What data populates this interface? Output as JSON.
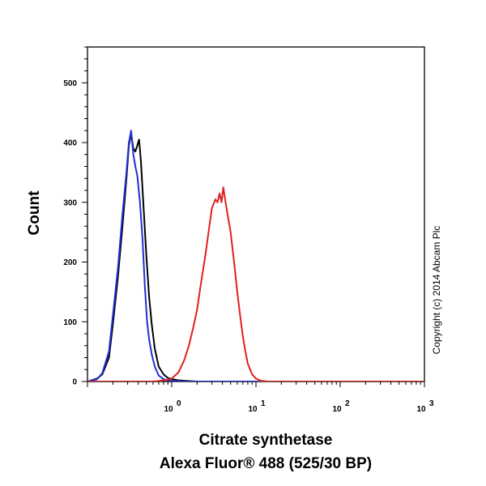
{
  "chart_data": {
    "type": "line",
    "title": "",
    "xlabel": [
      "Citrate synthetase",
      "Alexa Fluor® 488 (525/30 BP)"
    ],
    "ylabel": "Count",
    "x_scale": "log",
    "xlim": [
      0.1,
      1000
    ],
    "ylim": [
      0,
      560
    ],
    "x_ticks": [
      {
        "value": 1,
        "base": "10",
        "exp": "0"
      },
      {
        "value": 10,
        "base": "10",
        "exp": "1"
      },
      {
        "value": 100,
        "base": "10",
        "exp": "2"
      },
      {
        "value": 1000,
        "base": "10",
        "exp": "3"
      }
    ],
    "y_ticks": [
      0,
      100,
      200,
      300,
      400,
      500
    ],
    "grid": false,
    "legend": "none",
    "copyright": "Copyright (c) 2014 Abcam Plc",
    "series": [
      {
        "color": "#000000",
        "points": [
          [
            0.1,
            0
          ],
          [
            0.13,
            5
          ],
          [
            0.15,
            12
          ],
          [
            0.18,
            40
          ],
          [
            0.2,
            95
          ],
          [
            0.23,
            175
          ],
          [
            0.26,
            260
          ],
          [
            0.29,
            340
          ],
          [
            0.31,
            395
          ],
          [
            0.33,
            415
          ],
          [
            0.35,
            390
          ],
          [
            0.37,
            385
          ],
          [
            0.39,
            395
          ],
          [
            0.41,
            405
          ],
          [
            0.43,
            370
          ],
          [
            0.46,
            300
          ],
          [
            0.5,
            210
          ],
          [
            0.54,
            140
          ],
          [
            0.58,
            95
          ],
          [
            0.63,
            55
          ],
          [
            0.7,
            25
          ],
          [
            0.8,
            12
          ],
          [
            0.9,
            6
          ],
          [
            1.0,
            4
          ],
          [
            1.2,
            2
          ],
          [
            1.5,
            1
          ],
          [
            2,
            0
          ],
          [
            1000,
            0
          ]
        ]
      },
      {
        "color": "#1f2fd6",
        "points": [
          [
            0.1,
            0
          ],
          [
            0.13,
            4
          ],
          [
            0.15,
            14
          ],
          [
            0.18,
            50
          ],
          [
            0.2,
            110
          ],
          [
            0.23,
            190
          ],
          [
            0.26,
            280
          ],
          [
            0.29,
            350
          ],
          [
            0.31,
            400
          ],
          [
            0.33,
            420
          ],
          [
            0.35,
            380
          ],
          [
            0.37,
            360
          ],
          [
            0.39,
            345
          ],
          [
            0.42,
            300
          ],
          [
            0.45,
            240
          ],
          [
            0.48,
            160
          ],
          [
            0.51,
            100
          ],
          [
            0.54,
            70
          ],
          [
            0.58,
            45
          ],
          [
            0.63,
            25
          ],
          [
            0.7,
            10
          ],
          [
            0.8,
            4
          ],
          [
            0.9,
            2
          ],
          [
            1.0,
            1
          ],
          [
            1.5,
            0
          ],
          [
            1000,
            0
          ]
        ]
      },
      {
        "color": "#e02020",
        "points": [
          [
            0.1,
            0
          ],
          [
            0.6,
            0
          ],
          [
            0.7,
            1
          ],
          [
            0.8,
            2
          ],
          [
            0.9,
            3
          ],
          [
            1.0,
            5
          ],
          [
            1.2,
            15
          ],
          [
            1.4,
            35
          ],
          [
            1.6,
            60
          ],
          [
            1.8,
            90
          ],
          [
            2.0,
            120
          ],
          [
            2.2,
            160
          ],
          [
            2.5,
            210
          ],
          [
            2.8,
            260
          ],
          [
            3.0,
            290
          ],
          [
            3.3,
            305
          ],
          [
            3.5,
            300
          ],
          [
            3.7,
            315
          ],
          [
            3.9,
            300
          ],
          [
            4.1,
            325
          ],
          [
            4.3,
            305
          ],
          [
            4.6,
            280
          ],
          [
            5.0,
            250
          ],
          [
            5.5,
            200
          ],
          [
            6.0,
            150
          ],
          [
            6.5,
            110
          ],
          [
            7.0,
            75
          ],
          [
            7.5,
            50
          ],
          [
            8.0,
            30
          ],
          [
            9.0,
            12
          ],
          [
            10,
            5
          ],
          [
            11,
            2
          ],
          [
            12,
            1
          ],
          [
            14,
            0
          ],
          [
            1000,
            0
          ]
        ]
      }
    ]
  }
}
